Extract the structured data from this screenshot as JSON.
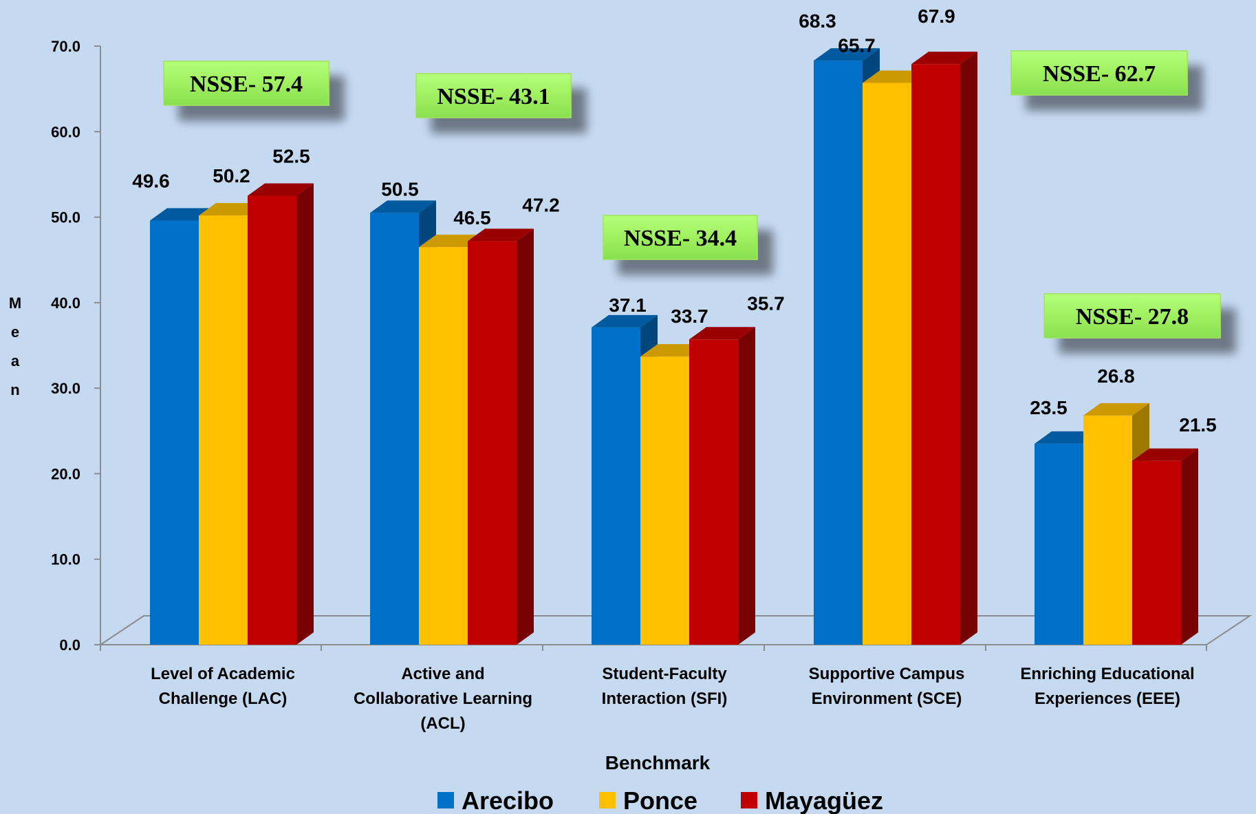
{
  "chart_data": {
    "type": "bar",
    "title": "",
    "xlabel": "Benchmark",
    "ylabel": "Mean",
    "ylim": [
      0,
      70
    ],
    "yticks": [
      "0.0",
      "10.0",
      "20.0",
      "30.0",
      "40.0",
      "50.0",
      "60.0",
      "70.0"
    ],
    "categories": [
      [
        "Level of Academic",
        "Challenge (LAC)"
      ],
      [
        "Active and",
        "Collaborative Learning",
        "(ACL)"
      ],
      [
        "Student-Faculty",
        "Interaction (SFI)"
      ],
      [
        "Supportive Campus",
        "Environment  (SCE)"
      ],
      [
        "Enriching Educational",
        "Experiences (EEE)"
      ]
    ],
    "series": [
      {
        "name": "Arecibo",
        "color": "#0070c8",
        "values": [
          49.6,
          50.5,
          37.1,
          68.3,
          23.5
        ]
      },
      {
        "name": "Ponce",
        "color": "#ffc000",
        "values": [
          50.2,
          46.5,
          33.7,
          65.7,
          26.8
        ]
      },
      {
        "name": "Mayagüez",
        "color": "#c00000",
        "values": [
          52.5,
          47.2,
          35.7,
          67.9,
          21.5
        ]
      }
    ],
    "annotations": [
      "NSSE- 57.4",
      "NSSE- 43.1",
      "NSSE- 34.4",
      "NSSE- 62.7",
      "NSSE- 27.8"
    ],
    "legend_position": "bottom",
    "grid": false
  }
}
